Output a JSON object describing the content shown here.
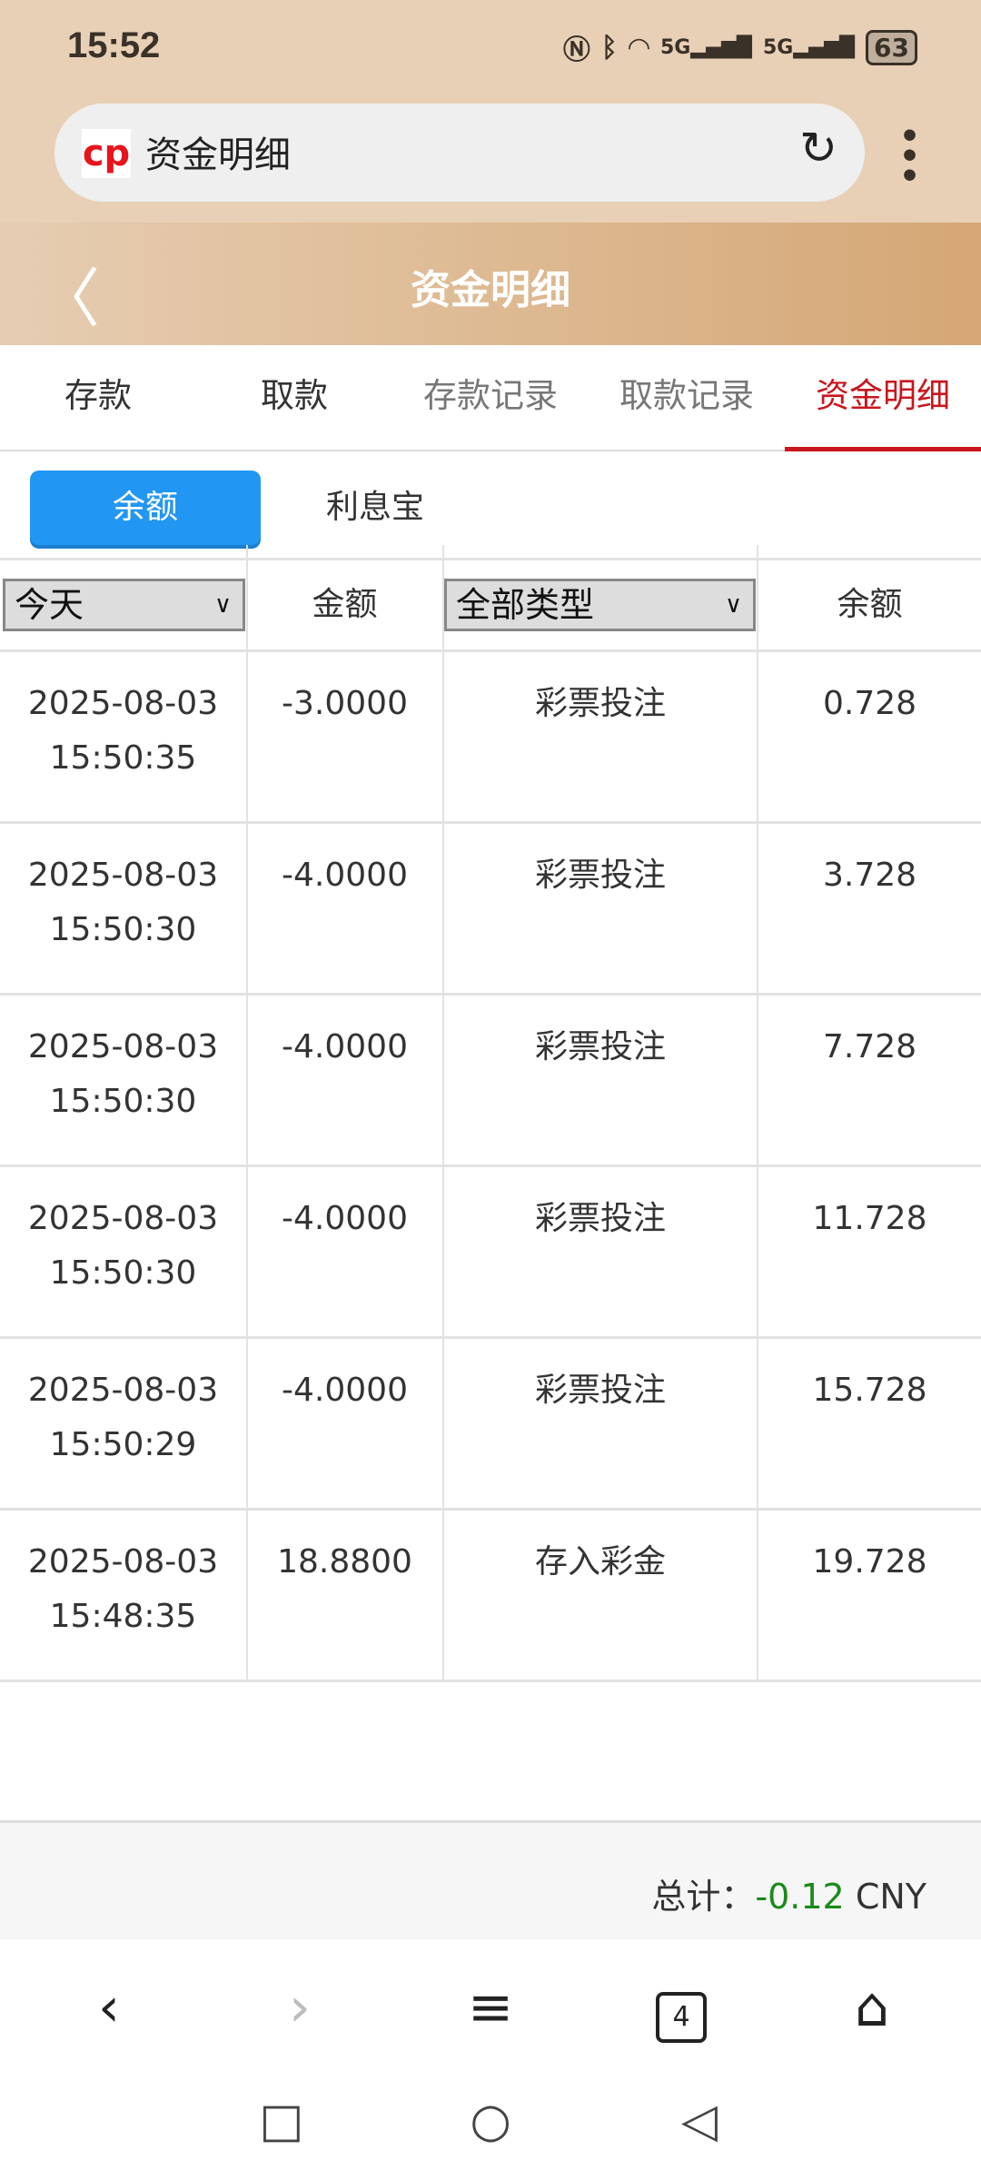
{
  "status": {
    "time": "15:52",
    "battery": "63",
    "icons": [
      "nfc-icon",
      "bluetooth-icon",
      "wifi-icon",
      "5g-signal-icon",
      "5g-signal-icon",
      "battery-icon"
    ]
  },
  "browser": {
    "url_title": "资金明细"
  },
  "header": {
    "title": "资金明细"
  },
  "tabs": [
    "存款",
    "取款",
    "存款记录",
    "取款记录",
    "资金明细"
  ],
  "subtabs": [
    "余额",
    "利息宝"
  ],
  "filters": {
    "date": "今天",
    "type": "全部类型",
    "col_amount": "金额",
    "col_balance": "余额"
  },
  "rows": [
    {
      "date": "2025-08-03",
      "time": "15:50:35",
      "amount": "-3.0000",
      "type": "彩票投注",
      "balance": "0.728"
    },
    {
      "date": "2025-08-03",
      "time": "15:50:30",
      "amount": "-4.0000",
      "type": "彩票投注",
      "balance": "3.728"
    },
    {
      "date": "2025-08-03",
      "time": "15:50:30",
      "amount": "-4.0000",
      "type": "彩票投注",
      "balance": "7.728"
    },
    {
      "date": "2025-08-03",
      "time": "15:50:30",
      "amount": "-4.0000",
      "type": "彩票投注",
      "balance": "11.728"
    },
    {
      "date": "2025-08-03",
      "time": "15:50:29",
      "amount": "-4.0000",
      "type": "彩票投注",
      "balance": "15.728"
    },
    {
      "date": "2025-08-03",
      "time": "15:48:35",
      "amount": "18.8800",
      "type": "存入彩金",
      "balance": "19.728"
    }
  ],
  "footer": {
    "label": "总计：",
    "value": "-0.12",
    "currency": "CNY"
  },
  "browser_nav": {
    "tabs_count": "4"
  },
  "colors": {
    "accent_red": "#c8161d",
    "subtab_blue": "#2196f3",
    "total_green": "#1a8a1a"
  }
}
